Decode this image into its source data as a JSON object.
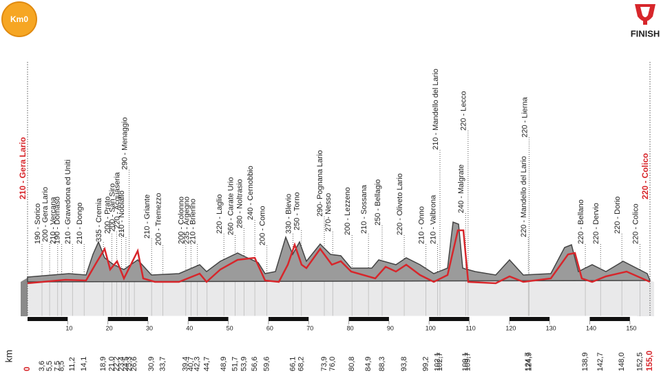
{
  "badge": "Km0",
  "finish_label": "FINISH",
  "axis_label": "km",
  "start": {
    "name": "210 - Gera Lario",
    "km": {
      "value": 0,
      "label": "0"
    }
  },
  "finish": {
    "name": "220 - Colico",
    "km": {
      "value": 155,
      "label": "155,0"
    }
  },
  "waypoints": [
    {
      "name": "190 - Sorico",
      "km": {
        "value": 3.6,
        "label": "3,6"
      }
    },
    {
      "name": "200 - Gera Lario",
      "km": {
        "value": 5.5,
        "label": "5,5"
      }
    },
    {
      "name": "210 - Vercana",
      "km": {
        "value": 7.5,
        "label": "7,5"
      }
    },
    {
      "name": "190 - Domaso",
      "km": {
        "value": 8.5,
        "label": "8,5"
      }
    },
    {
      "name": "210 - Gravedona ed Uniti",
      "km": {
        "value": 11.2,
        "label": "11,2"
      }
    },
    {
      "name": "210 - Dongo",
      "km": {
        "value": 14.1,
        "label": "14,1"
      }
    },
    {
      "name": "335 - Cremia",
      "km": {
        "value": 18.9,
        "label": "18,9"
      }
    },
    {
      "name": "200 - Prato",
      "km": {
        "value": 21.0,
        "label": "21,0"
      }
    },
    {
      "name": "200 - San Siro",
      "km": {
        "value": 22.2,
        "label": "22,2"
      }
    },
    {
      "name": "220 - Acquaseria",
      "km": {
        "value": 23.4,
        "label": "23,4"
      }
    },
    {
      "name": "210 - Nobiallo",
      "km": {
        "value": 24.5,
        "label": "24,5"
      }
    },
    {
      "name": "290 - Menaggio",
      "km": {
        "value": 25.3,
        "label": "25,3"
      }
    },
    {
      "km": {
        "value": 26.6,
        "label": "26,6"
      }
    },
    {
      "name": "210 - Griante",
      "km": {
        "value": 30.9,
        "label": "30,9"
      }
    },
    {
      "name": "200 - Tremezzo",
      "km": {
        "value": 33.7,
        "label": "33,7"
      }
    },
    {
      "name": "200 - Colonno",
      "km": {
        "value": 39.4,
        "label": "39,4"
      }
    },
    {
      "name": "235 - Argegno",
      "km": {
        "value": 40.7,
        "label": "40,7"
      }
    },
    {
      "name": "210 - Brienno",
      "km": {
        "value": 42.3,
        "label": "42,3"
      }
    },
    {
      "km": {
        "value": 44.7,
        "label": "44,7"
      }
    },
    {
      "name": "220 - Laglio",
      "km": {
        "value": 48.9,
        "label": "48,9"
      }
    },
    {
      "name": "260 - Carate Urio",
      "km": {
        "value": 51.7,
        "label": "51,7"
      }
    },
    {
      "name": "280 - Noltrasio",
      "km": {
        "value": 53.9,
        "label": "53,9"
      }
    },
    {
      "name": "240 - Cernobbio",
      "km": {
        "value": 56.6,
        "label": "56,6"
      }
    },
    {
      "name": "200 - Como",
      "km": {
        "value": 59.6,
        "label": "59,6"
      }
    },
    {
      "name": "330 - Blevio",
      "km": {
        "value": 66.1,
        "label": "66,1"
      }
    },
    {
      "name": "250 - Torno",
      "km": {
        "value": 68.2,
        "label": "68,2"
      }
    },
    {
      "name": "290- Pognana Lario",
      "km": {
        "value": 73.9,
        "label": "73,9"
      }
    },
    {
      "name": "270- Nesso",
      "km": {
        "value": 76.0,
        "label": "76,0"
      }
    },
    {
      "name": "200 - Lezzeno",
      "km": {
        "value": 80.8,
        "label": "80,8"
      }
    },
    {
      "name": "210 - Sossana",
      "km": {
        "value": 84.9,
        "label": "84,9"
      }
    },
    {
      "name": "250 - Bellagio",
      "km": {
        "value": 88.3,
        "label": "88,3"
      }
    },
    {
      "name": "220 - Oliveto Lario",
      "km": {
        "value": 93.8,
        "label": "93,8"
      }
    },
    {
      "name": "210 - Onno",
      "km": {
        "value": 99.2,
        "label": "99,2"
      }
    },
    {
      "name": "210 - Valbrona",
      "km": {
        "value": 102.1,
        "label": "102,1"
      }
    },
    {
      "name": "210 - Mandello del Lario",
      "km": {
        "value": 102.7,
        "label": "102,7"
      }
    },
    {
      "name": "240 - Malgrate",
      "km": {
        "value": 109.1,
        "label": "109,1"
      }
    },
    {
      "name": "220 - Lecco",
      "km": {
        "value": 109.7,
        "label": "109,7"
      }
    },
    {
      "name": "220 - Mandello del Lario",
      "km": {
        "value": 124.7,
        "label": "124,7"
      }
    },
    {
      "name": "220 - Lierna",
      "km": {
        "value": 124.9,
        "label": "124,9"
      }
    },
    {
      "name": "220 - Bellano",
      "km": {
        "value": 138.9,
        "label": "138,9"
      }
    },
    {
      "name": "220 - Dervio",
      "km": {
        "value": 142.7,
        "label": "142,7"
      }
    },
    {
      "name": "220 - Dorio",
      "km": {
        "value": 148.0,
        "label": "148,0"
      }
    },
    {
      "name": "220 - Colico",
      "km": {
        "value": 152.5,
        "label": "152,5"
      }
    }
  ],
  "scale_ticks": [
    10,
    20,
    30,
    40,
    50,
    60,
    70,
    80,
    90,
    100,
    110,
    120,
    130,
    140,
    150
  ]
}
